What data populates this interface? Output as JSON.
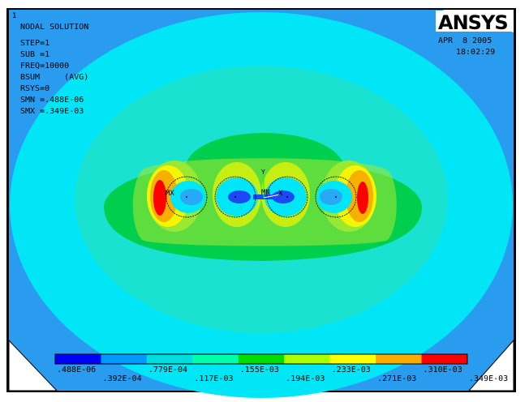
{
  "window": {
    "number": "1"
  },
  "logo": {
    "text": "ANSYS"
  },
  "header": {
    "lines": [
      "NODAL SOLUTION",
      "STEP=1",
      "SUB =1",
      "FREQ=10000",
      "BSUM     (AVG)",
      "RSYS=0",
      "SMN =.488E-06",
      "SMX =.349E-03"
    ],
    "date": "APR  8 2005",
    "time": "18:02:29"
  },
  "markers": {
    "mx": "MX",
    "mn": "MN",
    "x_axis": "X",
    "y_axis": "Y"
  },
  "colors": {
    "viewport": "#2a9cf0",
    "domain": "#00e6f6",
    "band2": "#2ee0b0",
    "band3": "#00cf4e",
    "band4": "#9be833",
    "band5": "#f5f500",
    "band6": "#f5b000",
    "band7": "#ff0000",
    "low": "#1a49f5",
    "low2": "#27aaf5"
  },
  "legend": {
    "colors": [
      "#0000ff",
      "#0099ff",
      "#00dddd",
      "#00ffaa",
      "#00dd00",
      "#aaff00",
      "#ffff00",
      "#ffaa00",
      "#ff0000"
    ],
    "labels_top": [
      ".488E-06",
      ".779E-04",
      ".155E-03",
      ".233E-03",
      ".310E-03"
    ],
    "labels_bottom": [
      ".392E-04",
      ".117E-03",
      ".194E-03",
      ".271E-03",
      ".349E-03"
    ]
  }
}
